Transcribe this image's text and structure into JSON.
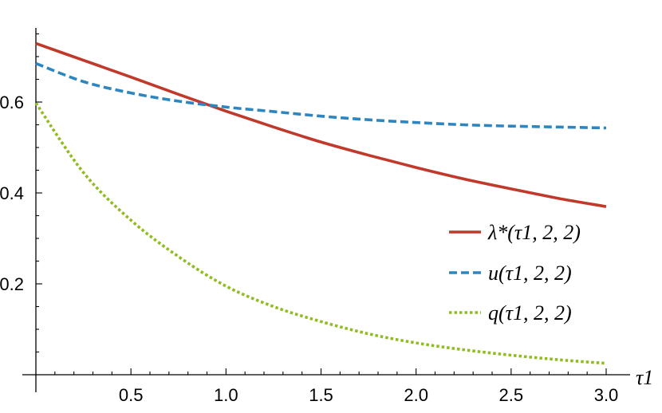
{
  "chart_data": {
    "type": "line",
    "xlabel": "τ1",
    "ylabel": "",
    "xlim": [
      0,
      3.0
    ],
    "ylim": [
      0,
      0.76
    ],
    "x_ticks": [
      "0.5",
      "1.0",
      "1.5",
      "2.0",
      "2.5",
      "3.0"
    ],
    "y_ticks": [
      "0.2",
      "0.4",
      "0.6"
    ],
    "grid": false,
    "legend_position": "right",
    "series": [
      {
        "name": "λ*(τ1, 2, 2)",
        "style": "solid",
        "color": "#c0392b",
        "x": [
          0,
          0.25,
          0.5,
          0.75,
          1.0,
          1.25,
          1.5,
          1.75,
          2.0,
          2.25,
          2.5,
          2.75,
          3.0
        ],
        "y": [
          0.729,
          0.692,
          0.655,
          0.617,
          0.58,
          0.545,
          0.512,
          0.483,
          0.456,
          0.431,
          0.409,
          0.388,
          0.37
        ]
      },
      {
        "name": "u(τ1, 2, 2)",
        "style": "dashed",
        "color": "#2e86c1",
        "x": [
          0,
          0.25,
          0.5,
          0.75,
          1.0,
          1.25,
          1.5,
          1.75,
          2.0,
          2.25,
          2.5,
          2.75,
          3.0
        ],
        "y": [
          0.685,
          0.645,
          0.62,
          0.602,
          0.589,
          0.579,
          0.569,
          0.561,
          0.555,
          0.55,
          0.547,
          0.545,
          0.543
        ]
      },
      {
        "name": "q(τ1, 2, 2)",
        "style": "dotted",
        "color": "#8fbc1f",
        "x": [
          0,
          0.25,
          0.5,
          0.75,
          1.0,
          1.25,
          1.5,
          1.75,
          2.0,
          2.25,
          2.5,
          2.75,
          3.0
        ],
        "y": [
          0.598,
          0.445,
          0.34,
          0.26,
          0.195,
          0.15,
          0.117,
          0.09,
          0.07,
          0.055,
          0.043,
          0.033,
          0.025
        ]
      }
    ]
  }
}
